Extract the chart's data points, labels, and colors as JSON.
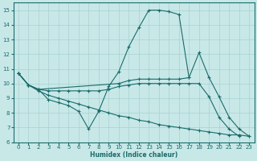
{
  "xlabel": "Humidex (Indice chaleur)",
  "xlim": [
    -0.5,
    23.5
  ],
  "ylim": [
    6,
    15.5
  ],
  "yticks": [
    6,
    7,
    8,
    9,
    10,
    11,
    12,
    13,
    14,
    15
  ],
  "xticks": [
    0,
    1,
    2,
    3,
    4,
    5,
    6,
    7,
    8,
    9,
    10,
    11,
    12,
    13,
    14,
    15,
    16,
    17,
    18,
    19,
    20,
    21,
    22,
    23
  ],
  "bg_color": "#c8e8e8",
  "line_color": "#1a6b6b",
  "grid_color": "#a8d0d0",
  "series": [
    {
      "x": [
        0,
        1,
        2,
        3,
        4,
        5,
        6,
        7,
        8,
        9,
        10,
        11,
        12,
        13,
        14,
        15,
        16,
        17
      ],
      "y": [
        10.7,
        9.9,
        9.6,
        8.9,
        8.7,
        8.5,
        8.1,
        6.9,
        8.1,
        9.8,
        10.8,
        12.5,
        13.8,
        15.0,
        15.0,
        14.9,
        14.7,
        10.4
      ]
    },
    {
      "x": [
        0,
        1,
        2,
        10,
        11,
        12,
        13,
        14,
        15,
        16,
        17,
        18,
        19,
        20,
        21,
        22,
        23
      ],
      "y": [
        10.7,
        9.9,
        9.6,
        10.0,
        10.2,
        10.3,
        10.3,
        10.3,
        10.3,
        10.3,
        10.4,
        12.1,
        10.4,
        9.1,
        7.7,
        6.9,
        6.4
      ]
    },
    {
      "x": [
        0,
        1,
        2,
        3,
        4,
        5,
        6,
        7,
        8,
        9,
        10,
        11,
        12,
        13,
        14,
        15,
        16,
        17,
        18,
        19,
        20,
        21,
        22,
        23
      ],
      "y": [
        10.7,
        9.9,
        9.6,
        9.5,
        9.5,
        9.5,
        9.5,
        9.5,
        9.5,
        9.6,
        9.8,
        9.9,
        10.0,
        10.0,
        10.0,
        10.0,
        10.0,
        10.0,
        10.0,
        9.1,
        7.7,
        6.9,
        6.4,
        null
      ]
    },
    {
      "x": [
        0,
        1,
        2,
        3,
        4,
        5,
        6,
        7,
        8,
        9,
        10,
        11,
        12,
        13,
        14,
        15,
        16,
        17,
        18,
        19,
        20,
        21,
        22,
        23
      ],
      "y": [
        10.7,
        9.9,
        9.5,
        9.2,
        9.0,
        8.8,
        8.6,
        8.4,
        8.2,
        8.0,
        7.8,
        7.7,
        7.5,
        7.4,
        7.2,
        7.1,
        7.0,
        6.9,
        6.8,
        6.7,
        6.6,
        6.5,
        6.5,
        6.4
      ]
    }
  ]
}
